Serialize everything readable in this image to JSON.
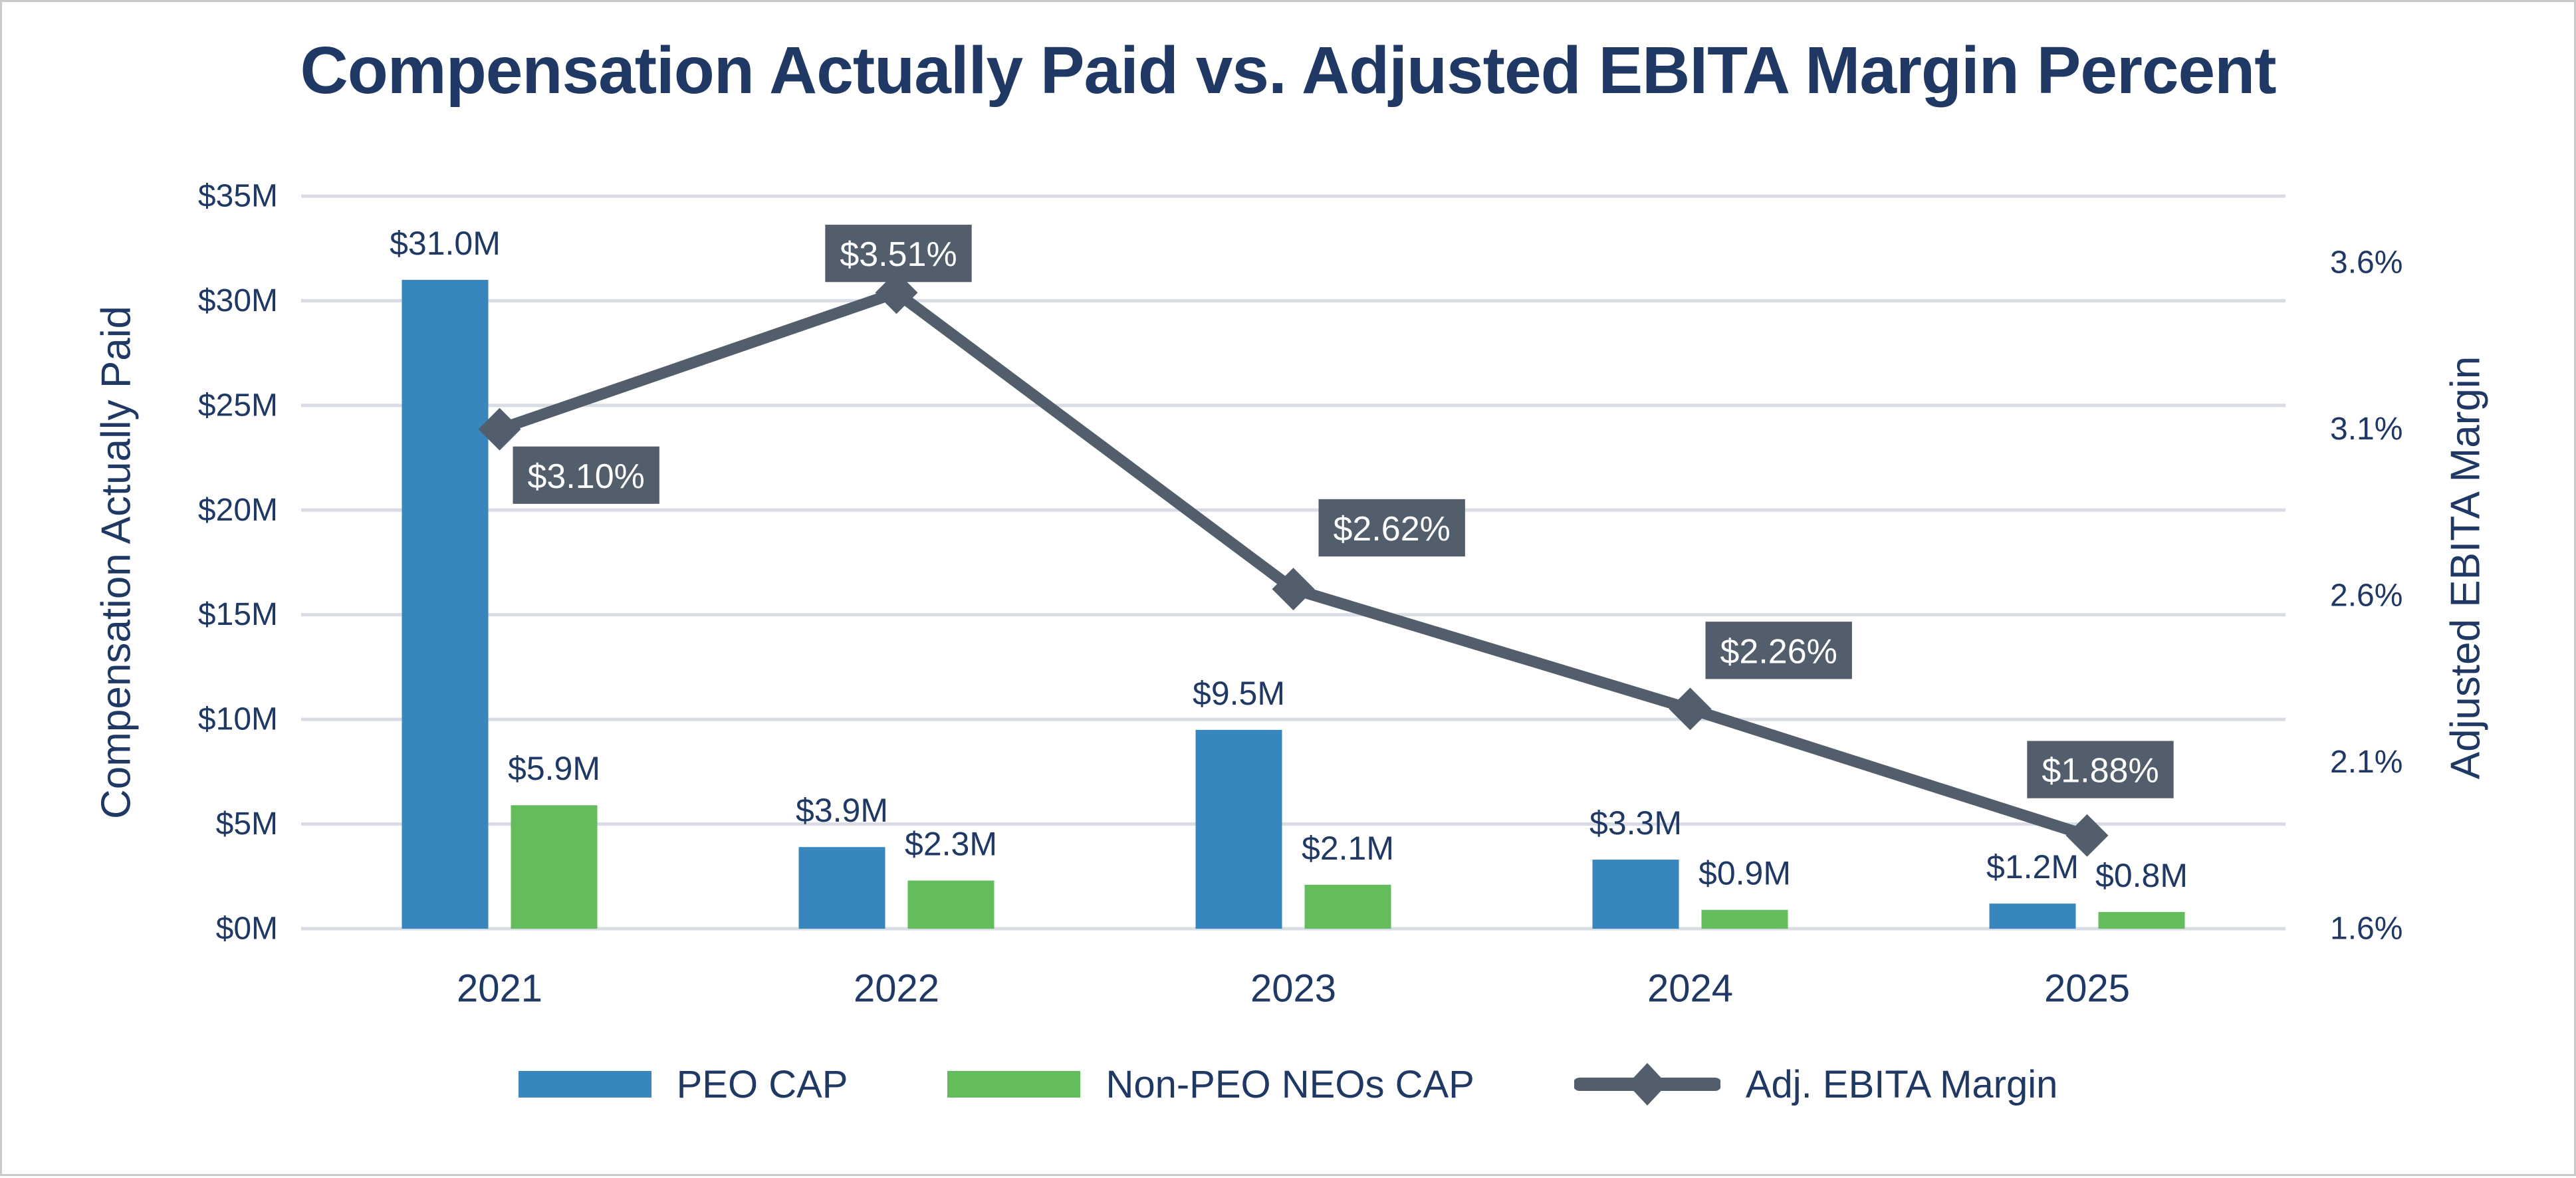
{
  "title": "Compensation Actually Paid vs. Adjusted EBITA Margin Percent",
  "colors": {
    "navy_text": "#1F3864",
    "peo_bar": "#3787BE",
    "non_peo_bar": "#63BD5C",
    "line_slate": "#525E6B",
    "gridline": "#D9DCE5",
    "label_box_text": "#FFFFFF",
    "frame_border": "#C9C9C9",
    "background": "#FFFFFF"
  },
  "chart_data": {
    "type": "combo-bar-line",
    "title": "Compensation Actually Paid vs. Adjusted EBITA Margin Percent",
    "categories": [
      "2021",
      "2022",
      "2023",
      "2024",
      "2025"
    ],
    "series": [
      {
        "name": "PEO CAP",
        "type": "bar",
        "axis": "left",
        "color": "#3787BE",
        "values": [
          31.0,
          3.9,
          9.5,
          3.3,
          1.2
        ],
        "labels": [
          "$31.0M",
          "$3.9M",
          "$9.5M",
          "$3.3M",
          "$1.2M"
        ]
      },
      {
        "name": "Non-PEO NEOs CAP",
        "type": "bar",
        "axis": "left",
        "color": "#63BD5C",
        "values": [
          5.9,
          2.3,
          2.1,
          0.9,
          0.8
        ],
        "labels": [
          "$5.9M",
          "$2.3M",
          "$2.1M",
          "$0.9M",
          "$0.8M"
        ]
      },
      {
        "name": "Adj. EBITA Margin",
        "type": "line",
        "axis": "right",
        "color": "#525E6B",
        "marker": "diamond",
        "values": [
          3.1,
          3.51,
          2.62,
          2.26,
          1.88
        ],
        "labels": [
          "$3.10%",
          "$3.51%",
          "$2.62%",
          "$2.26%",
          "$1.88%"
        ]
      }
    ],
    "left_axis": {
      "title": "Compensation Actually Paid",
      "min": 0,
      "max": 35,
      "tick_labels": [
        "$0M",
        "$5M",
        "$10M",
        "$15M",
        "$20M",
        "$25M",
        "$30M",
        "$35M"
      ],
      "tick_values": [
        0,
        5,
        10,
        15,
        20,
        25,
        30,
        35
      ]
    },
    "right_axis": {
      "title": "Adjusted EBITA Margin",
      "min": 1.6,
      "max": 3.8,
      "tick_labels": [
        "1.6%",
        "2.1%",
        "2.6%",
        "3.1%",
        "3.6%"
      ],
      "tick_values": [
        1.6,
        2.1,
        2.6,
        3.1,
        3.6
      ]
    },
    "grid": "horizontal",
    "legend_position": "bottom",
    "legend": [
      "PEO CAP",
      "Non-PEO NEOs CAP",
      "Adj. EBITA Margin"
    ]
  }
}
